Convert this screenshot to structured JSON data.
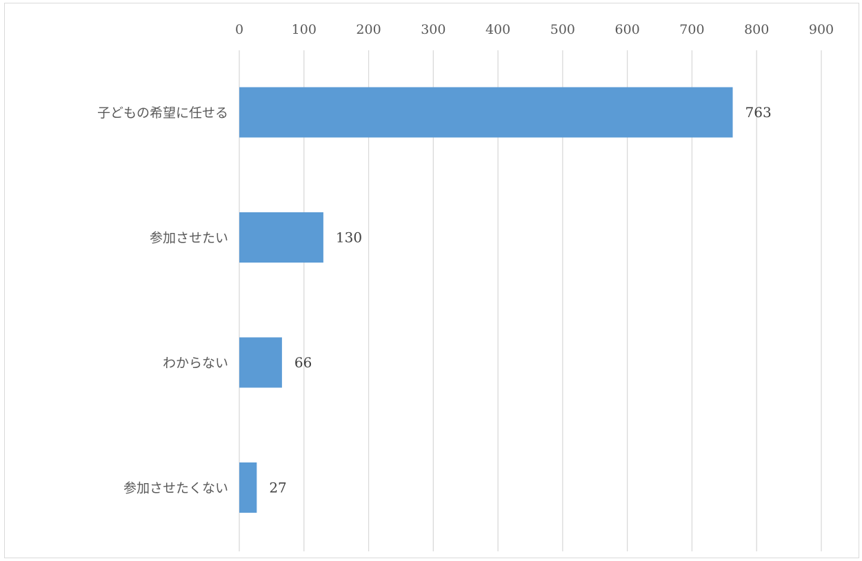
{
  "chart_data": {
    "type": "bar",
    "orientation": "horizontal",
    "categories": [
      "子どもの希望に任せる",
      "参加させたい",
      "わからない",
      "参加させたくない"
    ],
    "values": [
      763,
      130,
      66,
      27
    ],
    "data_labels": [
      "763",
      "130",
      "66",
      "27"
    ],
    "xticks": [
      "0",
      "100",
      "200",
      "300",
      "400",
      "500",
      "600",
      "700",
      "800",
      "900"
    ],
    "xlim": [
      0,
      900
    ],
    "x_axis_position": "top",
    "grid": true,
    "legend": "none",
    "title": "",
    "xlabel": "",
    "ylabel": "",
    "colors": {
      "bar": "#5b9bd5",
      "grid": "#d9d9d9",
      "tick_text": "#595959",
      "label_text": "#404040"
    }
  }
}
